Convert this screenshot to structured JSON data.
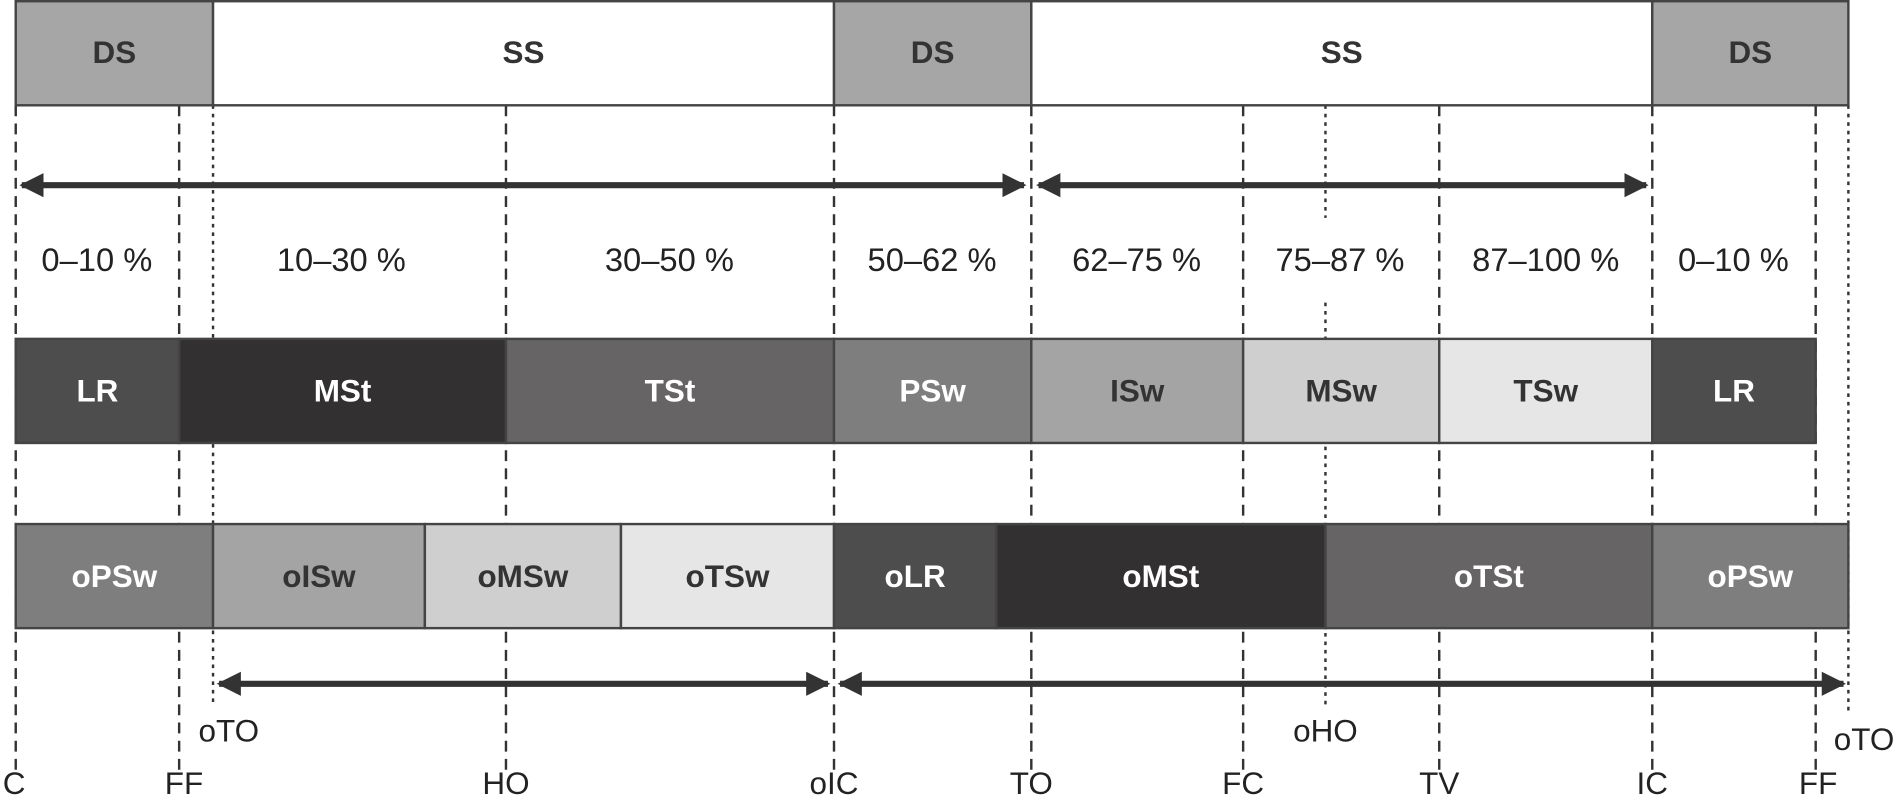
{
  "support": [
    "DS",
    "SS",
    "DS",
    "SS",
    "DS"
  ],
  "percentages": [
    "0–10 %",
    "10–30 %",
    "30–50 %",
    "50–62 %",
    "62–75 %",
    "75–87 %",
    "87–100 %",
    "0–10 %"
  ],
  "phases": [
    "LR",
    "MSt",
    "TSt",
    "PSw",
    "ISw",
    "MSw",
    "TSw",
    "LR"
  ],
  "opposite_phases": [
    "oPSw",
    "oISw",
    "oMSw",
    "oTSw",
    "oLR",
    "oMSt",
    "oTSt",
    "oPSw"
  ],
  "events": [
    "IC",
    "FF",
    "HO",
    "oIC",
    "TO",
    "FC",
    "TV",
    "IC",
    "FF"
  ],
  "opposite_events": [
    "oTO",
    "oHO",
    "oTO"
  ]
}
